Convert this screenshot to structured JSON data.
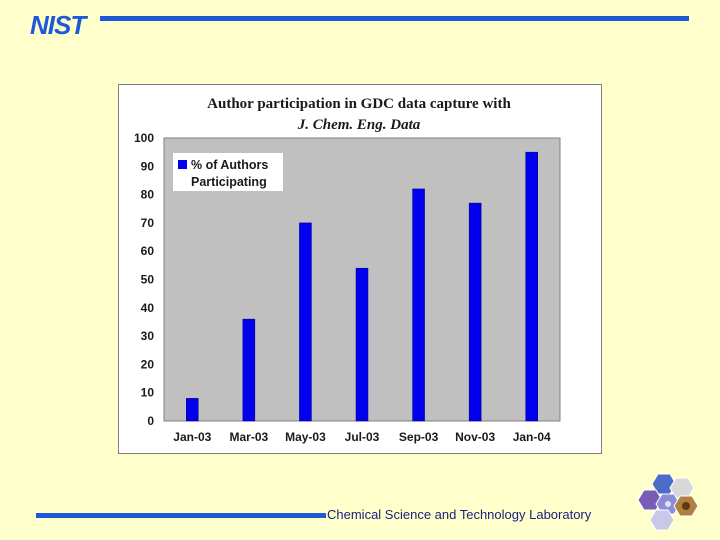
{
  "header": {
    "logo_text": "NIST"
  },
  "footer": {
    "label": "Chemical Science and Technology Laboratory"
  },
  "colors": {
    "background": "#FFFFCC",
    "rule": "#1E5AD7",
    "bar": "#0000EE",
    "plot_area": "#C0C0C0"
  },
  "chart_data": {
    "type": "bar",
    "title_line1": "Author participation in GDC data capture with",
    "title_line2": "J. Chem. Eng. Data",
    "categories": [
      "Jan-03",
      "Mar-03",
      "May-03",
      "Jul-03",
      "Sep-03",
      "Nov-03",
      "Jan-04"
    ],
    "series": [
      {
        "name": "% of Authors Participating",
        "values": [
          8,
          36,
          70,
          54,
          82,
          77,
          95
        ]
      }
    ],
    "legend_lines": [
      "% of Authors",
      "Participating"
    ],
    "legend_position": "top-left",
    "ylim": [
      0,
      100
    ],
    "yticks": [
      0,
      10,
      20,
      30,
      40,
      50,
      60,
      70,
      80,
      90,
      100
    ],
    "grid": false
  }
}
